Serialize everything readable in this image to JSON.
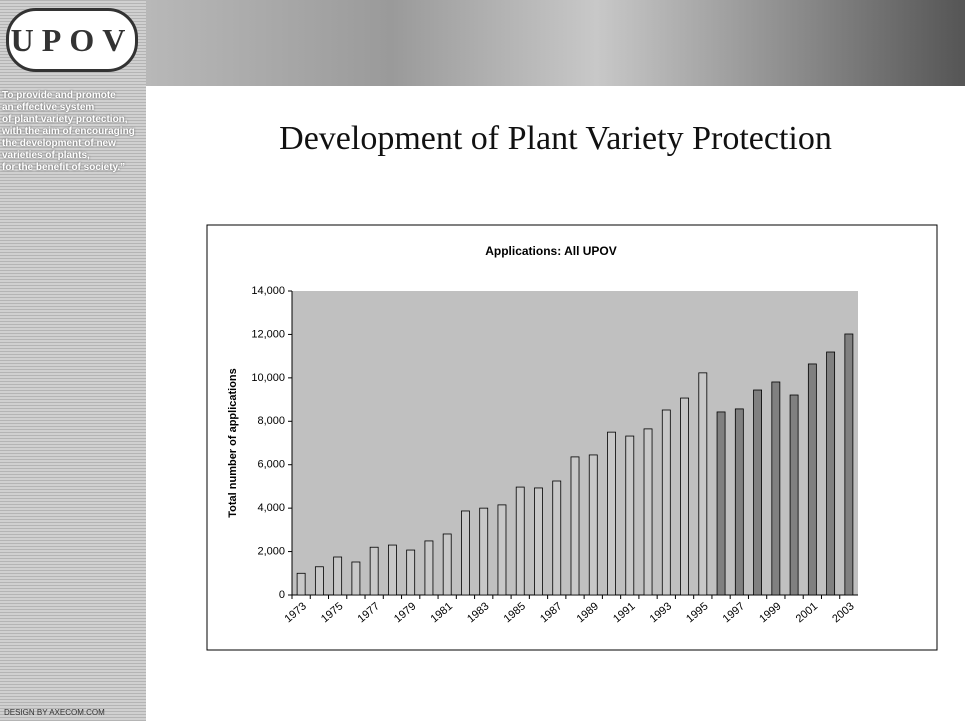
{
  "logo": "UPOV",
  "mission": [
    "To provide and promote",
    "an effective system",
    "of plant variety protection,",
    "with the aim of encouraging",
    "the development of new",
    "varieties of plants,",
    "for the benefit of society.”"
  ],
  "credit": "DESIGN BY AXECOM.COM",
  "slide_title": "Development of Plant Variety Protection",
  "chart_data": {
    "type": "bar",
    "title": "Applications:  All UPOV",
    "y_label": "Total number of applications",
    "categories": [
      "1973",
      null,
      "1975",
      null,
      "1977",
      null,
      "1979",
      null,
      "1981",
      null,
      "1983",
      null,
      "1985",
      null,
      "1987",
      null,
      "1989",
      null,
      "1991",
      null,
      "1993",
      null,
      "1995",
      null,
      "1997",
      null,
      "1999",
      null,
      "2001",
      null,
      "2003"
    ],
    "values": [
      1000,
      1300,
      1750,
      1520,
      2200,
      2300,
      2070,
      2490,
      2810,
      3870,
      4000,
      4150,
      4970,
      4930,
      5250,
      6360,
      6450,
      7500,
      7320,
      7650,
      8520,
      9070,
      10230,
      8430,
      8570,
      9440,
      9810,
      9210,
      10640,
      11190,
      12020
    ],
    "colors": [
      "#c8c8c8",
      "#c8c8c8",
      "#c8c8c8",
      "#c8c8c8",
      "#c8c8c8",
      "#c8c8c8",
      "#c8c8c8",
      "#c8c8c8",
      "#c8c8c8",
      "#c8c8c8",
      "#c8c8c8",
      "#c8c8c8",
      "#c8c8c8",
      "#c8c8c8",
      "#c8c8c8",
      "#c8c8c8",
      "#c8c8c8",
      "#c8c8c8",
      "#c8c8c8",
      "#c8c8c8",
      "#c8c8c8",
      "#c8c8c8",
      "#c8c8c8",
      "#808080",
      "#808080",
      "#808080",
      "#808080",
      "#808080",
      "#808080",
      "#808080",
      "#808080"
    ],
    "plot_background": "#c0c0c0",
    "ylim": [
      0,
      14000
    ],
    "yticks": [
      0,
      {
        "value": 2000,
        "label": "2,000"
      },
      {
        "value": 4000,
        "label": "4,000"
      },
      {
        "value": 6000,
        "label": "6,000"
      },
      {
        "value": 8000,
        "label": "8,000"
      },
      {
        "value": 10000,
        "label": "10,000"
      },
      {
        "value": 12000,
        "label": "12,000"
      },
      {
        "value": 14000,
        "label": "14,000"
      }
    ]
  }
}
